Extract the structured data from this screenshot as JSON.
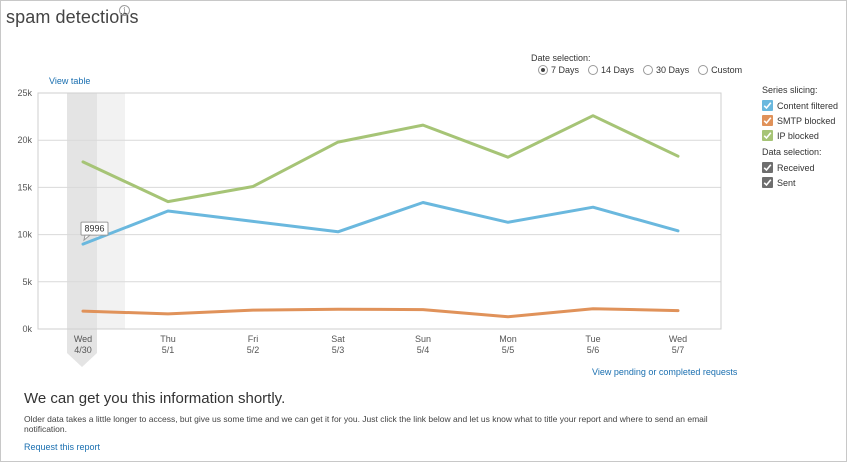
{
  "header": {
    "title": "spam detections",
    "info_glyph": "i"
  },
  "links": {
    "view_table": "View table",
    "pending": "View pending or completed requests",
    "request": "Request this report"
  },
  "date_selection": {
    "label": "Date selection:",
    "options": [
      {
        "label": "7 Days",
        "selected": true
      },
      {
        "label": "14 Days",
        "selected": false
      },
      {
        "label": "30 Days",
        "selected": false
      },
      {
        "label": "Custom",
        "selected": false
      }
    ]
  },
  "series_slicing": {
    "label": "Series slicing:",
    "items": [
      {
        "label": "Content filtered",
        "color": "#6ab8de",
        "checked": true
      },
      {
        "label": "SMTP blocked",
        "color": "#e0925a",
        "checked": true
      },
      {
        "label": "IP blocked",
        "color": "#a6c476",
        "checked": true
      }
    ]
  },
  "data_selection": {
    "label": "Data selection:",
    "items": [
      {
        "label": "Received",
        "color": "#6e6e6e",
        "checked": true
      },
      {
        "label": "Sent",
        "color": "#6e6e6e",
        "checked": true
      }
    ]
  },
  "message": {
    "headline": "We can get you this information shortly.",
    "body": "Older data takes a little longer to access, but give us some time and we can get it for you. Just click the link below and let us know what to title your report and where to send an email notification."
  },
  "chart_data": {
    "type": "line",
    "categories": [
      {
        "day": "Wed",
        "date": "4/30"
      },
      {
        "day": "Thu",
        "date": "5/1"
      },
      {
        "day": "Fri",
        "date": "5/2"
      },
      {
        "day": "Sat",
        "date": "5/3"
      },
      {
        "day": "Sun",
        "date": "5/4"
      },
      {
        "day": "Mon",
        "date": "5/5"
      },
      {
        "day": "Tue",
        "date": "5/6"
      },
      {
        "day": "Wed",
        "date": "5/7"
      }
    ],
    "series": [
      {
        "name": "Content filtered",
        "color": "#6ab8de",
        "values": [
          8996,
          12500,
          11400,
          10300,
          13400,
          11300,
          12900,
          10400
        ]
      },
      {
        "name": "SMTP blocked",
        "color": "#e0925a",
        "values": [
          1900,
          1600,
          2000,
          2100,
          2050,
          1300,
          2150,
          1950
        ]
      },
      {
        "name": "IP blocked",
        "color": "#a6c476",
        "values": [
          17700,
          13500,
          15100,
          19800,
          21600,
          18200,
          22600,
          18300
        ]
      }
    ],
    "ylim": [
      0,
      25000
    ],
    "yticks": [
      {
        "value": 0,
        "label": "0k"
      },
      {
        "value": 5000,
        "label": "5k"
      },
      {
        "value": 10000,
        "label": "10k"
      },
      {
        "value": 15000,
        "label": "15k"
      },
      {
        "value": 20000,
        "label": "20k"
      },
      {
        "value": 25000,
        "label": "25k"
      }
    ],
    "grid": true,
    "highlighted_index": 0,
    "tooltip": {
      "series_index": 0,
      "index": 0,
      "label": "8996"
    }
  }
}
